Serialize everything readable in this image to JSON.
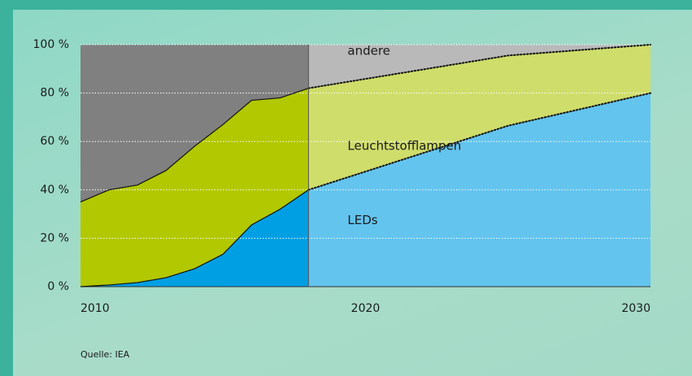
{
  "chart_data": {
    "type": "area",
    "x": [
      2010,
      2011,
      2012,
      2013,
      2014,
      2015,
      2016,
      2017,
      2018,
      2025,
      2030
    ],
    "projection_from": 2018,
    "series": [
      {
        "name": "LEDs",
        "color": "#009fe3",
        "projection_color": "#63c4ee",
        "values": [
          0,
          0.7,
          1.7,
          3.7,
          7.4,
          13.4,
          25.5,
          32,
          40,
          66.5,
          80
        ]
      },
      {
        "name": "Leuchtstofflampen",
        "color": "#b2c800",
        "projection_color": "#cfdd6b",
        "values": [
          35,
          39.3,
          40.3,
          44.3,
          50.6,
          53.6,
          51.5,
          46,
          42,
          29,
          20
        ]
      },
      {
        "name": "andere",
        "color": "#808080",
        "projection_color": "#b9b9b9",
        "values": [
          65,
          60,
          58,
          52,
          42,
          33,
          23,
          22,
          18,
          4.5,
          0
        ]
      }
    ],
    "xlim": [
      2010,
      2030
    ],
    "xticks": [
      2010,
      2020,
      2030
    ],
    "ylim": [
      0,
      100
    ],
    "yticks": [
      {
        "value": 0,
        "label": "0 %"
      },
      {
        "value": 20,
        "label": "20 %"
      },
      {
        "value": 40,
        "label": "40 %"
      },
      {
        "value": 60,
        "label": "60 %"
      },
      {
        "value": 80,
        "label": "80 %"
      },
      {
        "value": 100,
        "label": "100 %"
      }
    ],
    "grid": true,
    "source": "Quelle: IEA"
  }
}
